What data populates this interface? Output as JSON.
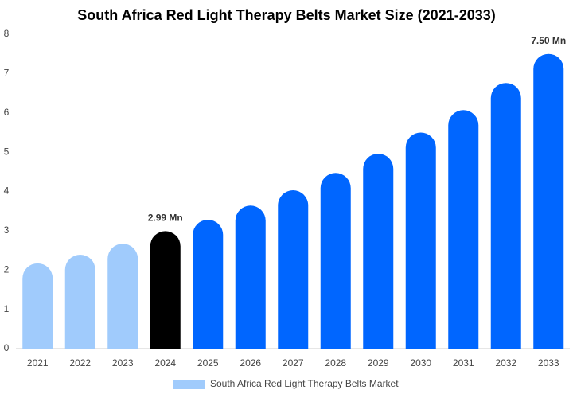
{
  "chart_data": {
    "type": "bar",
    "title": "South Africa Red Light Therapy Belts Market Size (2021-2033)",
    "categories": [
      "2021",
      "2022",
      "2023",
      "2024",
      "2025",
      "2026",
      "2027",
      "2028",
      "2029",
      "2030",
      "2031",
      "2032",
      "2033"
    ],
    "series": [
      {
        "name": "South Africa Red Light Therapy Belts Market",
        "color": "#a0cbfc",
        "values": [
          2.17,
          2.39,
          2.67,
          2.99,
          3.28,
          3.64,
          4.03,
          4.47,
          4.96,
          5.5,
          6.07,
          6.76,
          7.5
        ],
        "value_labels": [
          null,
          null,
          null,
          "2.99 Mn",
          null,
          null,
          null,
          null,
          null,
          null,
          null,
          null,
          "7.50 Mn"
        ],
        "colors": [
          "#a0cbfc",
          "#a0cbfc",
          "#a0cbfc",
          "#000000",
          "#0066ff",
          "#0066ff",
          "#0066ff",
          "#0066ff",
          "#0066ff",
          "#0066ff",
          "#0066ff",
          "#0066ff",
          "#0066ff"
        ]
      }
    ],
    "ylim": [
      0,
      8
    ],
    "yticks": [
      0,
      1,
      2,
      3,
      4,
      5,
      6,
      7,
      8
    ],
    "grid": false
  }
}
